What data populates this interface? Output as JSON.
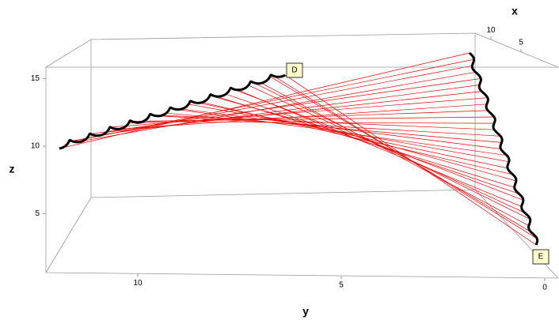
{
  "chart_data": {
    "type": "3d-ruled-surface",
    "axis_labels": {
      "x": "x",
      "y": "y",
      "z": "z"
    },
    "xticks": [
      10,
      5
    ],
    "yticks": [
      10,
      5,
      0
    ],
    "zticks": [
      15,
      10,
      5
    ],
    "annotations": [
      "D",
      "E"
    ]
  }
}
